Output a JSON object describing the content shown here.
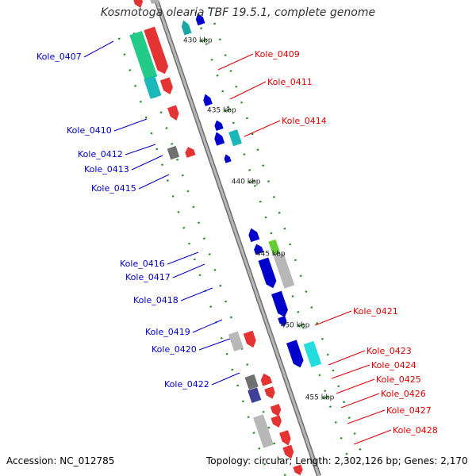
{
  "title": "Kosmotoga olearia TBF 19.5.1, complete genome",
  "footer": {
    "accession": "Accession: NC_012785",
    "summary": "Topology: circular; Length: 2,302,126 bp; Genes: 2,170"
  },
  "colors": {
    "left_labels": "#0000cc",
    "right_labels": "#dd0000",
    "ticks": "#2e7d2e",
    "backbone": "#8a8a8a"
  },
  "ticks": [
    {
      "label": "430 kbp"
    },
    {
      "label": "435 kbp"
    },
    {
      "label": "440 kbp"
    },
    {
      "label": "445 kbp"
    },
    {
      "label": "450 kbp"
    },
    {
      "label": "455 kbp"
    }
  ],
  "left_genes": [
    {
      "label": "Kole_0407"
    },
    {
      "label": "Kole_0410"
    },
    {
      "label": "Kole_0412"
    },
    {
      "label": "Kole_0413"
    },
    {
      "label": "Kole_0415"
    },
    {
      "label": "Kole_0416"
    },
    {
      "label": "Kole_0417"
    },
    {
      "label": "Kole_0418"
    },
    {
      "label": "Kole_0419"
    },
    {
      "label": "Kole_0420"
    },
    {
      "label": "Kole_0422"
    }
  ],
  "right_genes": [
    {
      "label": "Kole_0409"
    },
    {
      "label": "Kole_0411"
    },
    {
      "label": "Kole_0414"
    },
    {
      "label": "Kole_0421"
    },
    {
      "label": "Kole_0423"
    },
    {
      "label": "Kole_0424"
    },
    {
      "label": "Kole_0425"
    },
    {
      "label": "Kole_0426"
    },
    {
      "label": "Kole_0427"
    },
    {
      "label": "Kole_0428"
    }
  ]
}
